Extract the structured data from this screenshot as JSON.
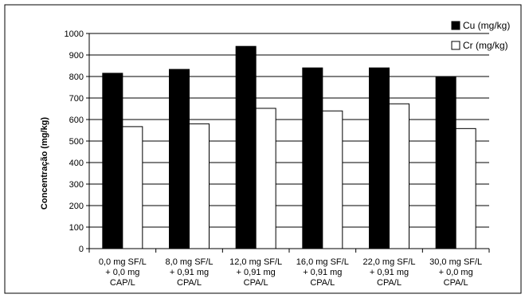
{
  "chart_data": {
    "type": "bar",
    "title": "",
    "xlabel": "",
    "ylabel": "Concentração (mg/kg)",
    "ylim": [
      0,
      1000
    ],
    "yticks": [
      0,
      100,
      200,
      300,
      400,
      500,
      600,
      700,
      800,
      900,
      1000
    ],
    "grid": true,
    "legend_position": "top-right",
    "categories": [
      [
        "0,0 mg SF/L",
        "+ 0,0 mg",
        "CAP/L"
      ],
      [
        "8,0 mg SF/L",
        "+ 0,91 mg",
        "CPA/L"
      ],
      [
        "12,0 mg SF/L",
        "+ 0,91 mg",
        "CPA/L"
      ],
      [
        "16,0 mg SF/L",
        "+ 0,91 mg",
        "CPA/L"
      ],
      [
        "22,0 mg SF/L",
        "+ 0,91 mg",
        "CPA/L"
      ],
      [
        "30,0 mg SF/L",
        "+ 0,0 mg",
        "CPA/L"
      ]
    ],
    "series": [
      {
        "name": "Cu (mg/kg)",
        "color": "#000000",
        "values": [
          815,
          833,
          940,
          840,
          840,
          797
        ]
      },
      {
        "name": "Cr (mg/kg)",
        "color": "#ffffff",
        "values": [
          567,
          580,
          652,
          640,
          673,
          558
        ]
      }
    ]
  }
}
